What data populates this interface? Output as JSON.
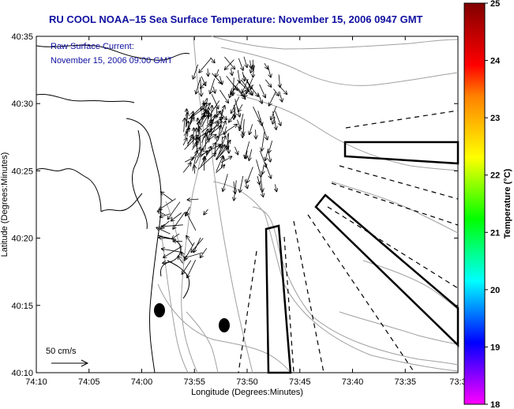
{
  "title": "RU COOL  NOAA–15  Sea Surface Temperature:  November 15, 2006 0947 GMT",
  "current_label": "Raw Surface Current:",
  "current_time": "November 15, 2006 09:00 GMT",
  "scale_label": "50 cm/s",
  "xlabel": "Longitude (Degrees:Minutes)",
  "ylabel": "Latitude (Degrees:Minutes)",
  "x_ticks": [
    "74:10",
    "74:05",
    "74:00",
    "73:55",
    "73:50",
    "73:45",
    "73:40",
    "73:35",
    "73:3"
  ],
  "y_ticks": [
    "40:35",
    "40:30",
    "40:25",
    "40:20",
    "40:15",
    "40:10"
  ],
  "colorbar": {
    "label": "Temperature (°C)",
    "ticks": [
      "25",
      "24",
      "23",
      "22",
      "21",
      "20",
      "19",
      "18"
    ],
    "stops": [
      "#ff00ff",
      "#8000ff",
      "#0000ff",
      "#0080ff",
      "#00ffff",
      "#00ff80",
      "#00ff00",
      "#80ff00",
      "#ffff00",
      "#ffc000",
      "#ff8000",
      "#ff0000",
      "#c00000",
      "#800000"
    ]
  },
  "colors": {
    "title": "#1010a0",
    "contour": "#a0a0a0",
    "coast": "#000000"
  }
}
